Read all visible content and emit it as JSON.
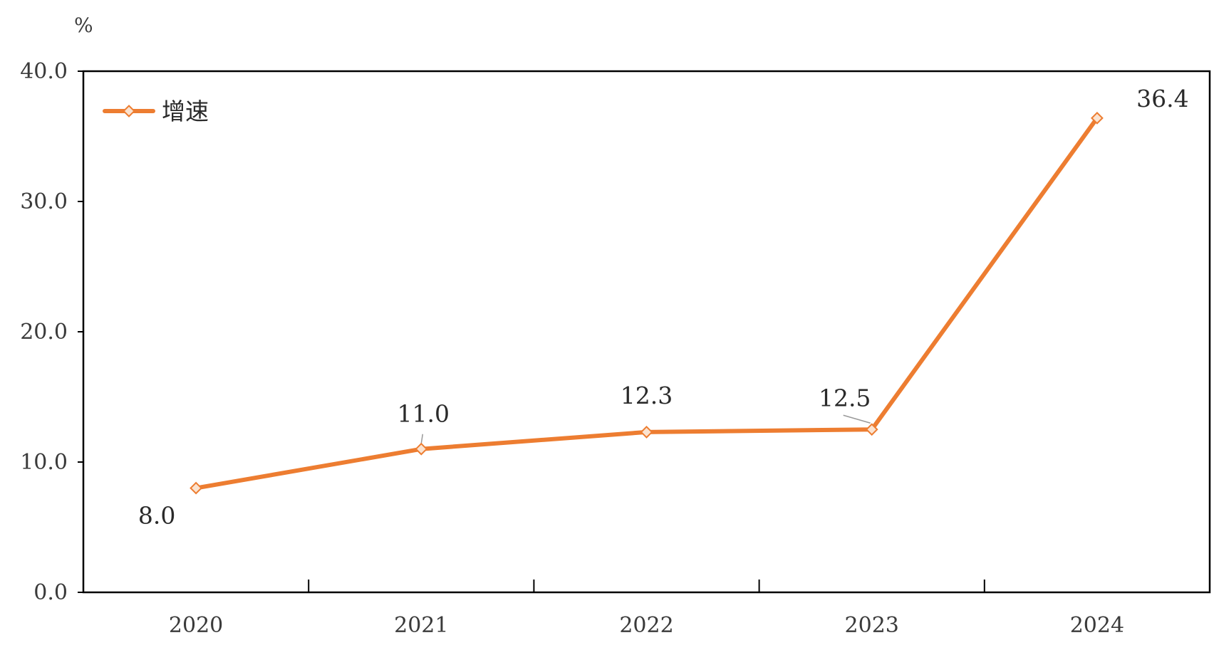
{
  "chart_data": {
    "type": "line",
    "title": "",
    "xlabel": "",
    "ylabel": "%",
    "categories": [
      "2020",
      "2021",
      "2022",
      "2023",
      "2024"
    ],
    "series": [
      {
        "name": "增速",
        "values": [
          8.0,
          11.0,
          12.3,
          12.5,
          36.4
        ],
        "labels": [
          "8.0",
          "11.0",
          "12.3",
          "12.5",
          "36.4"
        ]
      }
    ],
    "ylim": [
      0,
      40
    ],
    "yticks": [
      0,
      10,
      20,
      30,
      40
    ],
    "ytick_labels": [
      "0.0",
      "10.0",
      "20.0",
      "30.0",
      "40.0"
    ],
    "grid": false,
    "legend_position": "top-left",
    "colors": {
      "line": "#ED7D31",
      "marker_fill": "#FBE3D0",
      "axis": "#000000",
      "text": "#333333"
    }
  }
}
